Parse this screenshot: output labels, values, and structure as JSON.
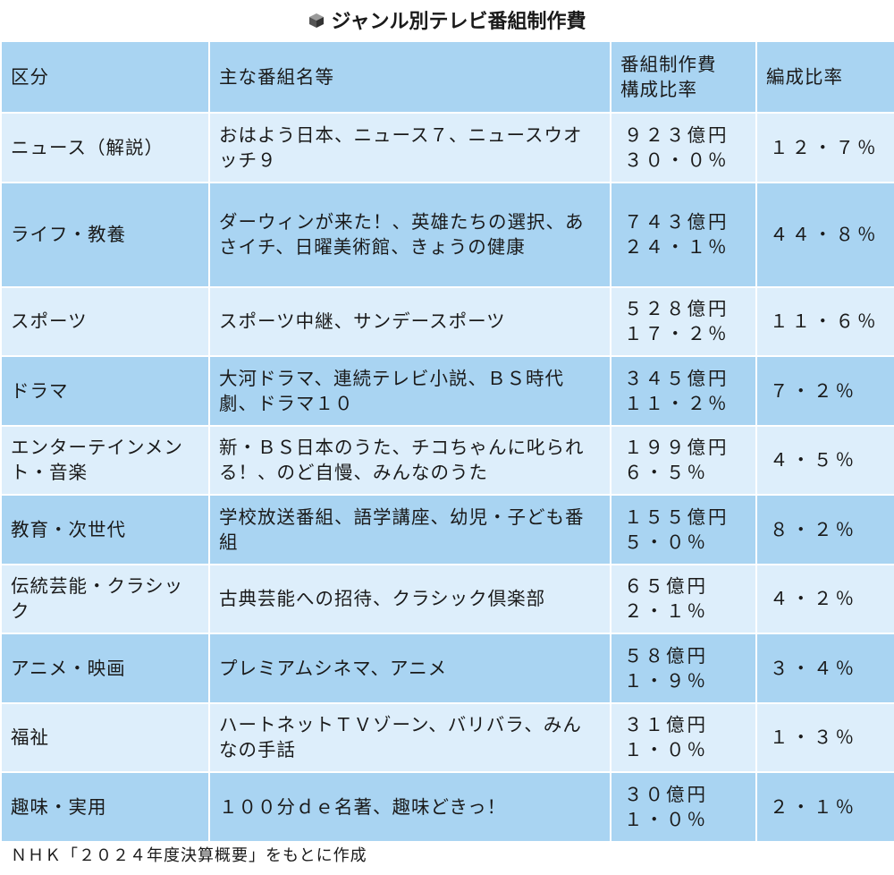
{
  "title": "ジャンル別テレビ番組制作費",
  "headers": {
    "category": "区分",
    "programs": "主な番組名等",
    "cost_line1": "番組制作費",
    "cost_line2": "構成比率",
    "ratio": "編成比率"
  },
  "rows": [
    {
      "category": "ニュース（解説）",
      "programs": "おはよう日本、ニュース７、ニュースウオッチ９",
      "cost": "９２３億円",
      "cost_ratio": "３０・０％",
      "ratio": "１２・７％"
    },
    {
      "category": "ライフ・教養",
      "programs": "ダーウィンが来た！、英雄たちの選択、あさイチ、日曜美術館、きょうの健康",
      "cost": "７４３億円",
      "cost_ratio": "２４・１％",
      "ratio": "４４・８％"
    },
    {
      "category": "スポーツ",
      "programs": "スポーツ中継、サンデースポーツ",
      "cost": "５２８億円",
      "cost_ratio": "１７・２％",
      "ratio": "１１・６％"
    },
    {
      "category": "ドラマ",
      "programs": "大河ドラマ、連続テレビ小説、ＢＳ時代劇、ドラマ１０",
      "cost": "３４５億円",
      "cost_ratio": "１１・２％",
      "ratio": "７・２％"
    },
    {
      "category": "エンターテインメント・音楽",
      "programs": "新・ＢＳ日本のうた、チコちゃんに叱られる！、のど自慢、みんなのうた",
      "cost": "１９９億円",
      "cost_ratio": "６・５％",
      "ratio": "４・５％"
    },
    {
      "category": "教育・次世代",
      "programs": "学校放送番組、語学講座、幼児・子ども番組",
      "cost": "１５５億円",
      "cost_ratio": "５・０％",
      "ratio": "８・２％"
    },
    {
      "category": "伝統芸能・クラシック",
      "programs": "古典芸能への招待、クラシック倶楽部",
      "cost": "６５億円",
      "cost_ratio": "２・１％",
      "ratio": "４・２％"
    },
    {
      "category": "アニメ・映画",
      "programs": "プレミアムシネマ、アニメ",
      "cost": "５８億円",
      "cost_ratio": "１・９％",
      "ratio": "３・４％"
    },
    {
      "category": "福祉",
      "programs": "ハートネットＴＶゾーン、バリバラ、みんなの手話",
      "cost": "３１億円",
      "cost_ratio": "１・０％",
      "ratio": "１・３％"
    },
    {
      "category": "趣味・実用",
      "programs": "１００分ｄｅ名著、趣味どきっ！",
      "cost": "３０億円",
      "cost_ratio": "１・０％",
      "ratio": "２・１％"
    }
  ],
  "source": "ＮＨＫ「２０２４年度決算概要」をもとに作成",
  "colors": {
    "header_bg": "#a9d4f2",
    "row_light": "#ddeefb",
    "row_dark": "#a9d4f2"
  },
  "icon": "cube-icon"
}
